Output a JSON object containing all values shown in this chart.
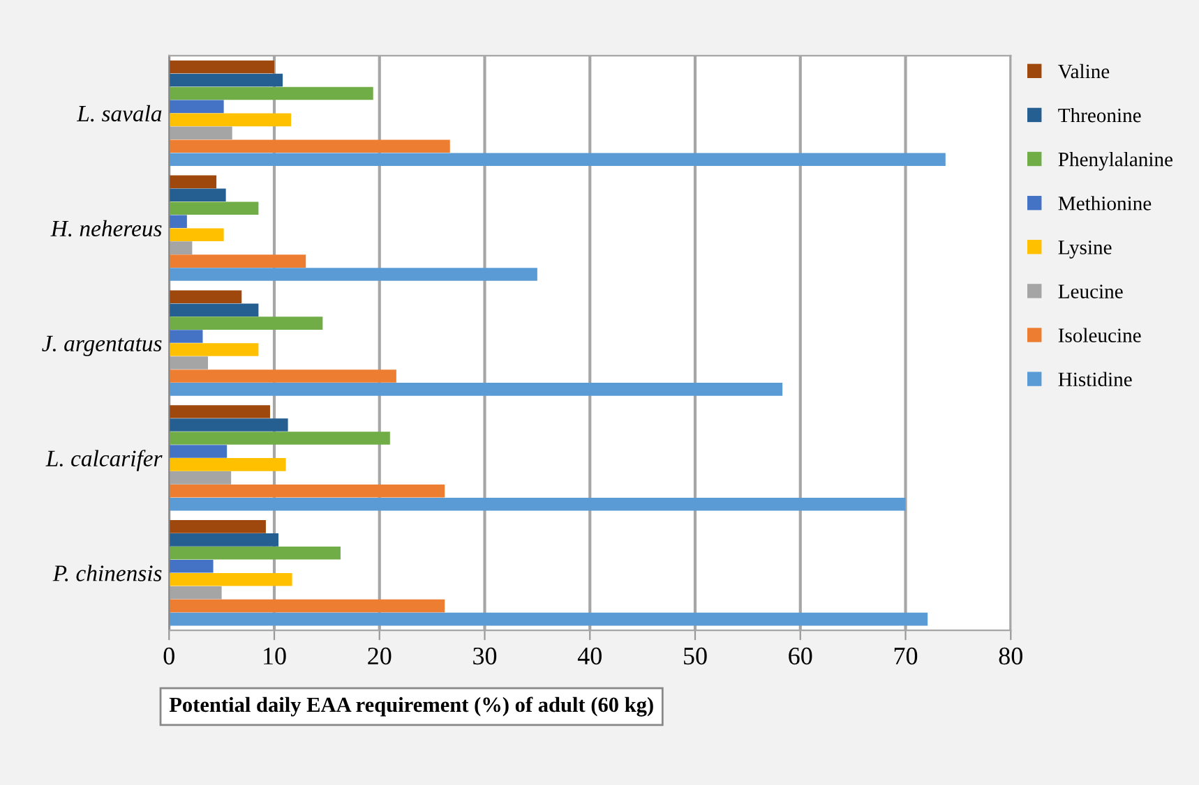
{
  "chart_data": {
    "type": "bar",
    "orientation": "horizontal",
    "xlabel": "Potential daily EAA requirement (%) of adult (60 kg)",
    "categories": [
      "L. savala",
      "H. nehereus",
      "J. argentatus",
      "L. calcarifer",
      "P. chinensis"
    ],
    "series": [
      {
        "name": "Valine",
        "color": "#9e480e",
        "values": [
          10.0,
          4.5,
          6.9,
          9.6,
          9.2
        ]
      },
      {
        "name": "Threonine",
        "color": "#255e91",
        "values": [
          10.8,
          5.4,
          8.5,
          11.3,
          10.4
        ]
      },
      {
        "name": "Phenylalanine",
        "color": "#70ad47",
        "values": [
          19.4,
          8.5,
          14.6,
          21.0,
          16.3
        ]
      },
      {
        "name": "Methionine",
        "color": "#4472c4",
        "values": [
          5.2,
          1.7,
          3.2,
          5.5,
          4.2
        ]
      },
      {
        "name": "Lysine",
        "color": "#ffc000",
        "values": [
          11.6,
          5.2,
          8.5,
          11.1,
          11.7
        ]
      },
      {
        "name": "Leucine",
        "color": "#a5a5a5",
        "values": [
          6.0,
          2.2,
          3.7,
          5.9,
          5.0
        ]
      },
      {
        "name": "Isoleucine",
        "color": "#ed7d31",
        "values": [
          26.7,
          13.0,
          21.6,
          26.2,
          26.2
        ]
      },
      {
        "name": "Histidine",
        "color": "#5b9bd5",
        "values": [
          73.8,
          35.0,
          58.3,
          70.0,
          72.1
        ]
      }
    ],
    "xlim": [
      0,
      80
    ],
    "xticks": [
      0,
      10,
      20,
      30,
      40,
      50,
      60,
      70,
      80
    ],
    "grid": "x",
    "legend": "right"
  }
}
